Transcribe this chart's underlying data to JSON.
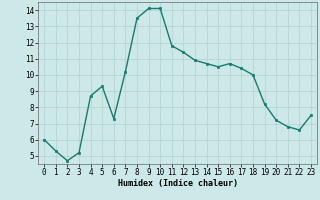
{
  "x": [
    0,
    1,
    2,
    3,
    4,
    5,
    6,
    7,
    8,
    9,
    10,
    11,
    12,
    13,
    14,
    15,
    16,
    17,
    18,
    19,
    20,
    21,
    22,
    23
  ],
  "y": [
    6.0,
    5.3,
    4.7,
    5.2,
    8.7,
    9.3,
    7.3,
    10.2,
    13.5,
    14.1,
    14.1,
    11.8,
    11.4,
    10.9,
    10.7,
    10.5,
    10.7,
    10.4,
    10.0,
    8.2,
    7.2,
    6.8,
    6.6,
    7.5
  ],
  "line_color": "#1a7a6e",
  "marker_color": "#1a7a6e",
  "bg_color": "#cde8e8",
  "grid_color": "#b0d0d0",
  "xlabel": "Humidex (Indice chaleur)",
  "ylim": [
    4.5,
    14.5
  ],
  "xlim": [
    -0.5,
    23.5
  ],
  "yticks": [
    5,
    6,
    7,
    8,
    9,
    10,
    11,
    12,
    13,
    14
  ],
  "xticks": [
    0,
    1,
    2,
    3,
    4,
    5,
    6,
    7,
    8,
    9,
    10,
    11,
    12,
    13,
    14,
    15,
    16,
    17,
    18,
    19,
    20,
    21,
    22,
    23
  ],
  "axis_fontsize": 6,
  "tick_fontsize": 5.5,
  "linewidth": 1.0,
  "markersize": 2.0
}
